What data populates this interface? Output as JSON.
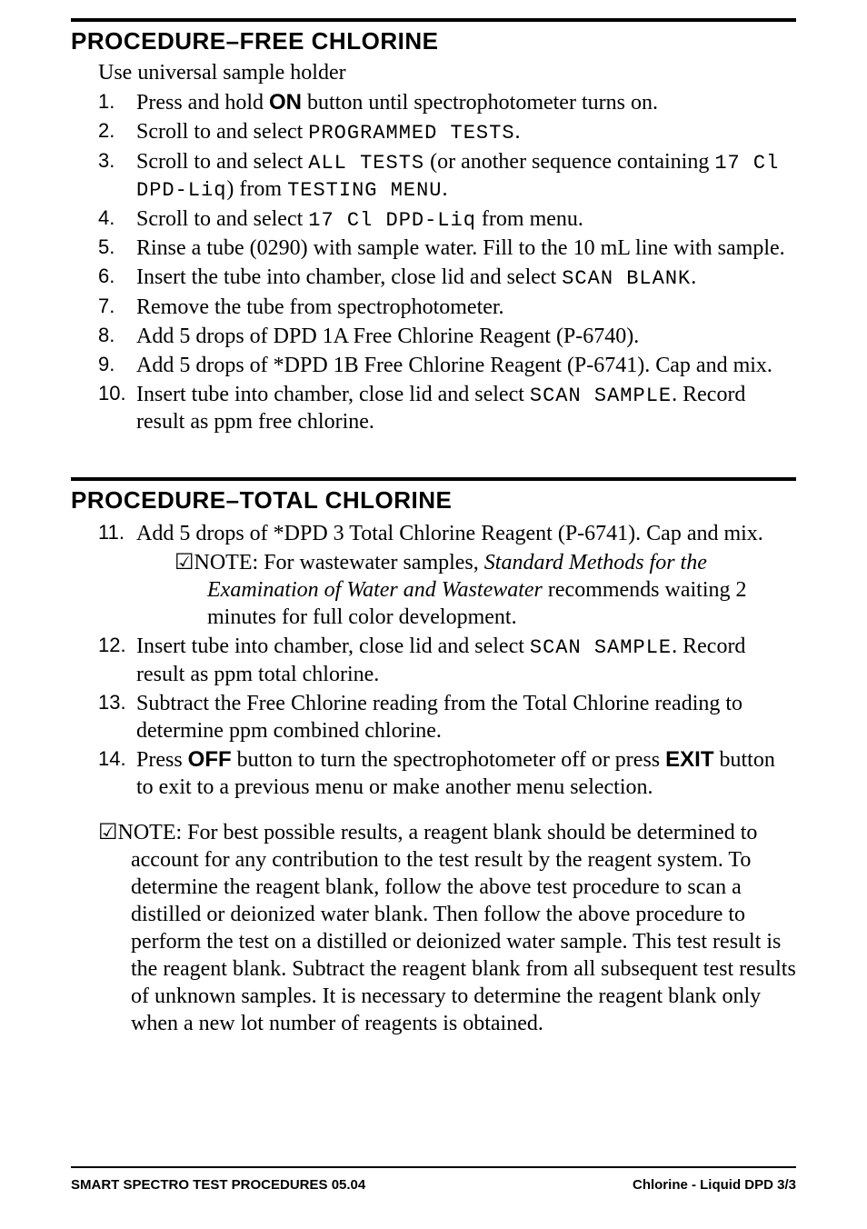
{
  "colors": {
    "text": "#000000",
    "background": "#ffffff",
    "rule": "#000000"
  },
  "typography": {
    "body_family": "Goudy / Goudy Old Style serif",
    "body_size_pt": 18,
    "heading_family": "Arial Black / Futura Extra Bold",
    "heading_size_pt": 20,
    "lcd_family": "monospace (LCD-style)",
    "lcd_size_pt": 16
  },
  "section1": {
    "title": "PROCEDURE–FREE CHLORINE",
    "lead": "Use universal sample holder",
    "steps": [
      {
        "pre": "Press and hold ",
        "btn": "ON",
        "post": " button until spectrophotometer turns on."
      },
      {
        "pre": "Scroll to and select ",
        "lcd": "PROGRAMMED TESTS",
        "post": "."
      },
      {
        "pre": "Scroll to and select ",
        "lcd": "ALL TESTS",
        "mid": " (or another sequence containing ",
        "lcd2": "17 Cl DPD-Liq",
        "mid2": ") from ",
        "lcd3": "TESTING MENU",
        "post": "."
      },
      {
        "pre": "Scroll to and select ",
        "lcd": "17 Cl DPD-Liq",
        "post": " from menu."
      },
      {
        "text": "Rinse a tube (0290) with sample water. Fill to the 10 mL line with sample."
      },
      {
        "pre": "Insert the tube into chamber, close lid and select ",
        "lcd": "SCAN BLANK",
        "post": "."
      },
      {
        "text": "Remove the tube from spectrophotometer."
      },
      {
        "text": "Add 5 drops of DPD 1A Free Chlorine Reagent (P-6740)."
      },
      {
        "text": "Add 5 drops of *DPD 1B Free Chlorine Reagent (P-6741). Cap and mix."
      },
      {
        "pre": "Insert tube into chamber, close lid and select ",
        "lcd": "SCAN SAMPLE",
        "post": ". Record result as ppm free chlorine."
      }
    ]
  },
  "section2": {
    "title": "PROCEDURE–TOTAL CHLORINE",
    "start": 10,
    "steps": [
      {
        "text": "Add 5 drops of *DPD 3 Total Chlorine Reagent (P-6741). Cap and mix.",
        "note_pre": "NOTE: For wastewater samples, ",
        "note_ital": "Standard Methods for the Examination of Water and Wastewater",
        "note_post": " recommends waiting 2 minutes for full color development."
      },
      {
        "pre": "Insert tube into chamber, close lid and select ",
        "lcd": "SCAN SAMPLE",
        "post": ". Record result as ppm total chlorine."
      },
      {
        "text": "Subtract the Free Chlorine reading from the Total Chlorine reading to determine ppm combined chlorine."
      },
      {
        "pre": "Press ",
        "btn": "OFF",
        "mid": " button to turn the spectrophotometer off or press ",
        "btn2": "EXIT",
        "post": " button to exit to a previous menu or make another menu selection."
      }
    ],
    "note": "NOTE: For best possible results, a reagent blank should be determined to account for any contribution to the test result by the reagent system. To determine the reagent blank, follow the above test procedure to scan a distilled or deionized water blank. Then follow the above procedure to perform the test on a distilled or deionized water sample. This test result is the reagent blank. Subtract the reagent blank from all subsequent test results of unknown samples. It is necessary to determine the reagent blank only when a new lot number of reagents is obtained."
  },
  "footer": {
    "left": "SMART SPECTRO TEST PROCEDURES  05.04",
    "right": "Chlorine - Liquid DPD 3/3"
  },
  "glyphs": {
    "checkbox": "☑"
  }
}
